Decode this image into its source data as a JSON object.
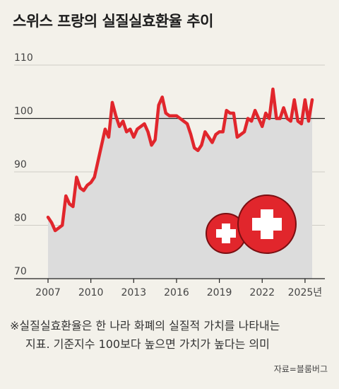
{
  "title": "스위스 프랑의 실질실효환율 추이",
  "note": {
    "line1": "※실질실효환율은 한 나라 화폐의 실질적 가치를 나타내는",
    "line2": "지표. 기준지수 100보다 높으면 가치가 높다는 의미"
  },
  "source": "자료=블룸버그",
  "colors": {
    "line": "#e1262c",
    "area": "#dcdcdc",
    "background": "#f3f1ea",
    "flag_red": "#e1262c"
  },
  "icons": [
    "swiss-flag-icon",
    "swiss-flag-icon"
  ],
  "chart_data": {
    "type": "line",
    "title": "스위스 프랑의 실질실효환율 추이",
    "xlabel": "",
    "ylabel": "",
    "ylim": [
      70,
      110
    ],
    "yticks": [
      "110",
      "100",
      "90",
      "80",
      "70"
    ],
    "xticks": [
      "2007",
      "2010",
      "2013",
      "2016",
      "2019",
      "2022",
      "2025년"
    ],
    "reference_line": 100,
    "grid": true,
    "series": [
      {
        "x": [
          2007.0,
          2007.25,
          2007.5,
          2007.75,
          2008.0,
          2008.25,
          2008.5,
          2008.75,
          2009.0,
          2009.25,
          2009.5,
          2009.75,
          2010.0,
          2010.25,
          2010.5,
          2010.75,
          2011.0,
          2011.25,
          2011.5,
          2011.75,
          2012.0,
          2012.25,
          2012.5,
          2012.75,
          2013.0,
          2013.25,
          2013.5,
          2013.75,
          2014.0,
          2014.25,
          2014.5,
          2014.75,
          2015.0,
          2015.25,
          2015.5,
          2015.75,
          2016.0,
          2016.25,
          2016.5,
          2016.75,
          2017.0,
          2017.25,
          2017.5,
          2017.75,
          2018.0,
          2018.25,
          2018.5,
          2018.75,
          2019.0,
          2019.25,
          2019.5,
          2019.75,
          2020.0,
          2020.25,
          2020.5,
          2020.75,
          2021.0,
          2021.25,
          2021.5,
          2021.75,
          2022.0,
          2022.25,
          2022.5,
          2022.75,
          2023.0,
          2023.25,
          2023.5,
          2023.75,
          2024.0,
          2024.25,
          2024.5,
          2024.75,
          2025.0,
          2025.25,
          2025.5
        ],
        "values": [
          81.5,
          80.5,
          79.0,
          79.5,
          80.0,
          85.5,
          84.0,
          83.5,
          89.0,
          87.0,
          86.5,
          87.5,
          88.0,
          89.0,
          92.0,
          95.0,
          98.0,
          96.5,
          103.0,
          100.5,
          98.5,
          99.5,
          97.5,
          98.0,
          96.5,
          98.0,
          98.5,
          99.0,
          97.5,
          95.0,
          96.0,
          102.5,
          104.0,
          101.0,
          100.5,
          100.5,
          100.5,
          100.0,
          99.5,
          99.0,
          97.0,
          94.5,
          94.0,
          95.0,
          97.5,
          96.5,
          95.5,
          97.0,
          97.5,
          97.5,
          101.5,
          101.0,
          101.0,
          96.5,
          97.0,
          97.5,
          100.0,
          99.5,
          101.5,
          100.0,
          98.5,
          101.0,
          100.0,
          105.5,
          100.0,
          100.0,
          102.0,
          100.0,
          99.5,
          103.5,
          99.5,
          99.0,
          103.5,
          99.5,
          103.5
        ]
      }
    ]
  }
}
